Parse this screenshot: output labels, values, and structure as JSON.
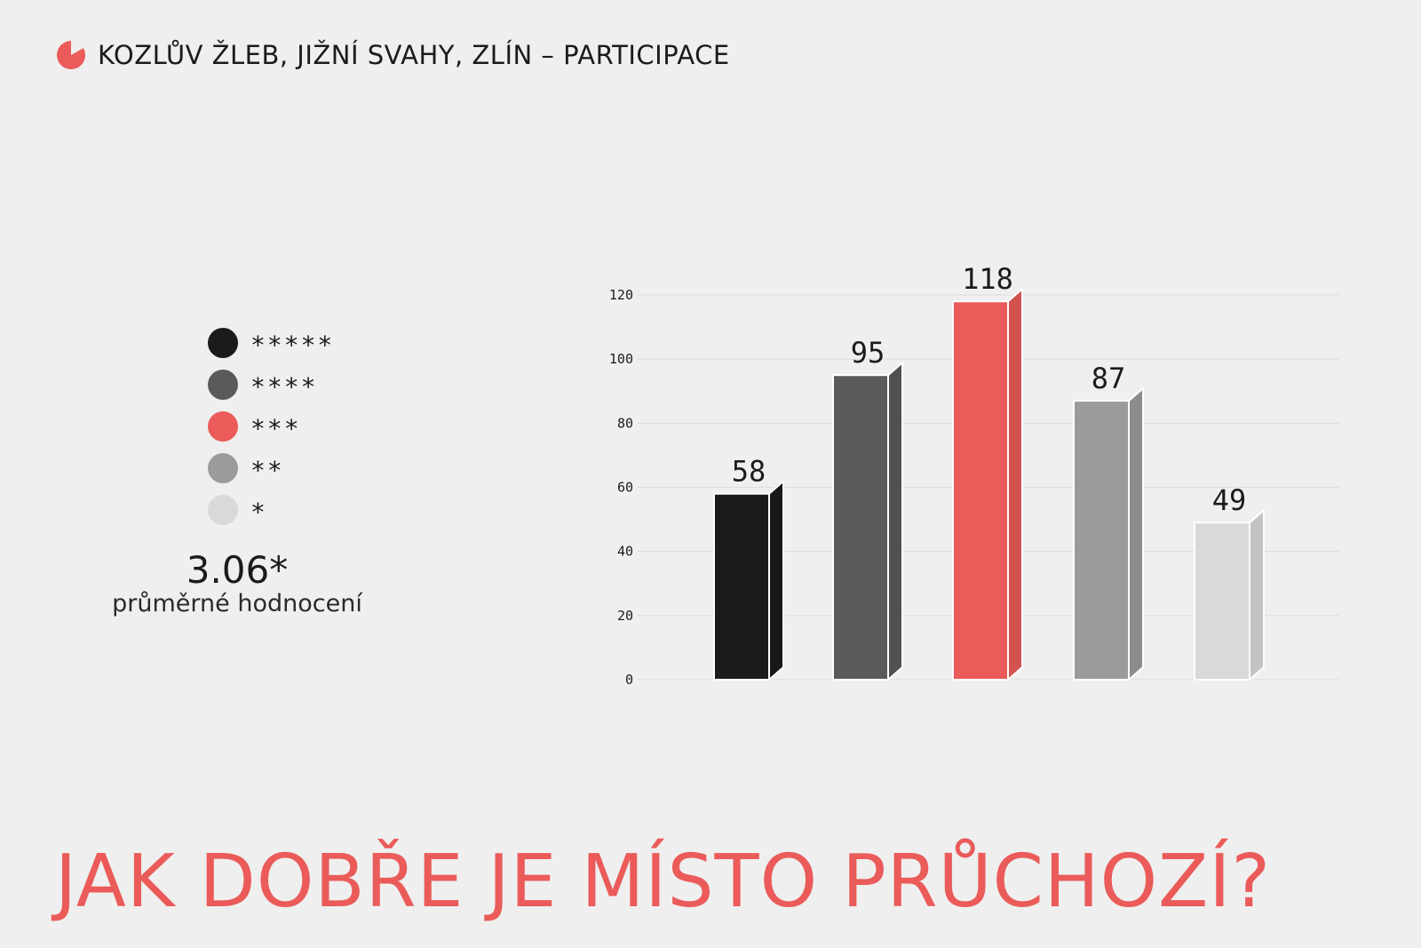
{
  "header": {
    "title": "KOZLŮV ŽLEB, JIŽNÍ SVAHY, ZLÍN – PARTICIPACE",
    "icon": "pie-chart-icon",
    "accent_color": "#ea5b59"
  },
  "legend": {
    "items": [
      {
        "label": "*****",
        "color": "#1b1b1b"
      },
      {
        "label": "****",
        "color": "#5a5a5a"
      },
      {
        "label": "***",
        "color": "#ea5b59"
      },
      {
        "label": "**",
        "color": "#9b9b9b"
      },
      {
        "label": "*",
        "color": "#d9d9d9"
      }
    ]
  },
  "rating": {
    "value": "3.06*",
    "caption": "průměrné hodnocení"
  },
  "question": "JAK DOBŘE JE MÍSTO PRŮCHOZÍ?",
  "chart_data": {
    "type": "bar",
    "categories": [
      "*****",
      "****",
      "***",
      "**",
      "*"
    ],
    "values": [
      58,
      95,
      118,
      87,
      49
    ],
    "colors": [
      "#1b1b1b",
      "#5a5a5a",
      "#ea5b59",
      "#9b9b9b",
      "#d9d9d9"
    ],
    "ylim": [
      0,
      120
    ],
    "yticks": [
      "0",
      "20",
      "40",
      "60",
      "80",
      "100",
      "120"
    ],
    "data_labels": [
      "58",
      "95",
      "118",
      "87",
      "49"
    ],
    "grid": true,
    "style": "3d-bars"
  }
}
